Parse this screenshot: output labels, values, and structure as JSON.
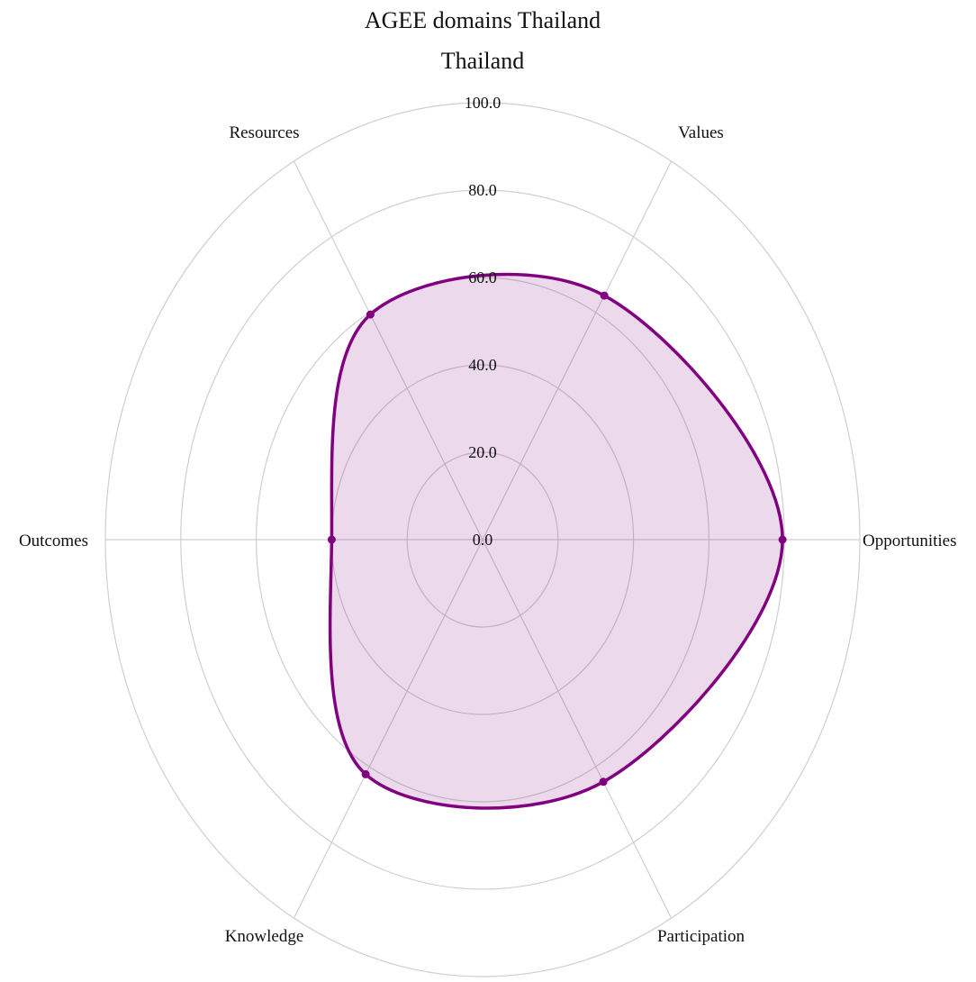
{
  "chart_data": {
    "type": "radar",
    "title": "AGEE domains Thailand",
    "subtitle": "Thailand",
    "axes": [
      "Opportunities",
      "Values",
      "Resources",
      "Outcomes",
      "Knowledge",
      "Participation"
    ],
    "rlim": [
      0,
      100
    ],
    "tick_values": [
      0,
      20,
      40,
      60,
      80,
      100
    ],
    "tick_labels": [
      "0.0",
      "20.0",
      "40.0",
      "60.0",
      "80.0",
      "100.0"
    ],
    "series": [
      {
        "values": [
          79.5,
          64.5,
          59.5,
          40.0,
          62.0,
          64.0
        ],
        "color": "#800080"
      }
    ],
    "grid": true,
    "legend": "none",
    "curve": "smooth"
  }
}
